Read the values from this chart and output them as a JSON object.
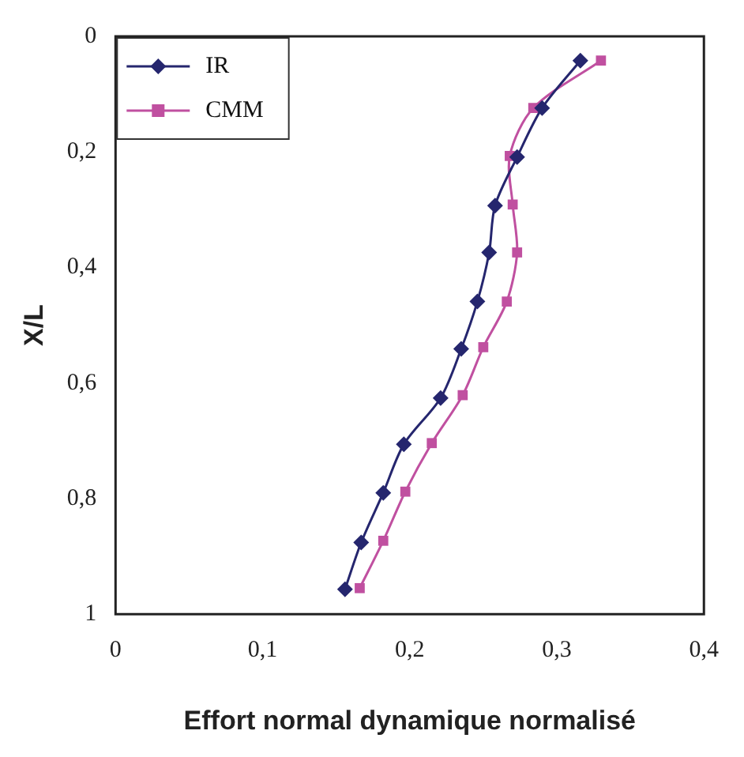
{
  "chart_data": {
    "type": "line",
    "xlabel": "Effort normal dynamique normalisé",
    "ylabel": "X/L",
    "series": [
      {
        "name": "IR",
        "color": "#25266e",
        "marker": "diamond",
        "x": [
          0.316,
          0.29,
          0.273,
          0.258,
          0.254,
          0.246,
          0.235,
          0.221,
          0.196,
          0.182,
          0.167,
          0.156
        ],
        "values": [
          0.042,
          0.124,
          0.209,
          0.293,
          0.374,
          0.459,
          0.541,
          0.626,
          0.706,
          0.79,
          0.876,
          0.957
        ]
      },
      {
        "name": "CMM",
        "color": "#c050a0",
        "marker": "square",
        "x": [
          0.33,
          0.284,
          0.268,
          0.27,
          0.273,
          0.266,
          0.25,
          0.236,
          0.215,
          0.197,
          0.182,
          0.166
        ],
        "values": [
          0.042,
          0.124,
          0.207,
          0.291,
          0.374,
          0.459,
          0.538,
          0.621,
          0.704,
          0.788,
          0.873,
          0.955
        ]
      }
    ],
    "xlim": [
      0,
      0.4
    ],
    "xticks": [
      0,
      {
        "value": 0.1,
        "label": "0,1"
      },
      {
        "value": 0.2,
        "label": "0,2"
      },
      {
        "value": 0.3,
        "label": "0,3"
      },
      {
        "value": 0.4,
        "label": "0,4"
      }
    ],
    "ylim": [
      1,
      0
    ],
    "yticks": [
      0,
      {
        "value": 0.2,
        "label": "0,2"
      },
      {
        "value": 0.4,
        "label": "0,4"
      },
      {
        "value": 0.6,
        "label": "0,6"
      },
      {
        "value": 0.8,
        "label": "0,8"
      },
      1
    ],
    "grid": false,
    "legend": "top left",
    "line_style": "solid"
  }
}
